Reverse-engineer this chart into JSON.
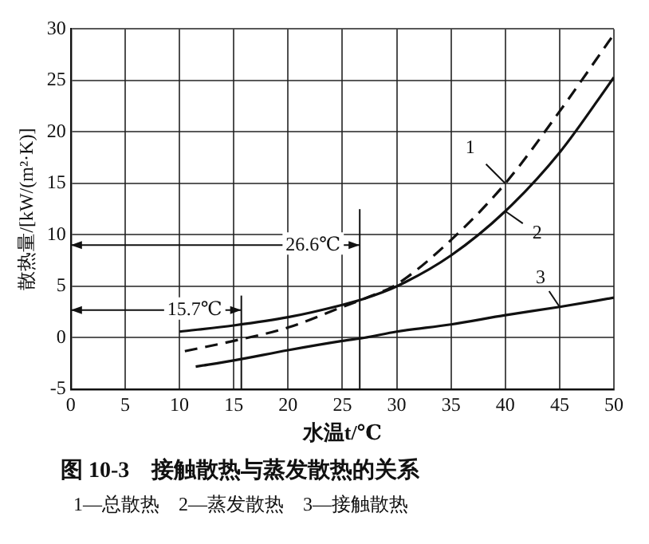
{
  "chart_data": {
    "type": "line",
    "title": "图 10-3　接触散热与蒸发散热的关系",
    "xlabel": "水温t/℃",
    "ylabel": "散热量/[kW/(m²·K)]",
    "annotations": [
      "1—总散热　2—蒸发散热　3—接触散热"
    ],
    "series": [
      {
        "name": "1",
        "color": "#111111",
        "line_style": "dashed",
        "x": [
          10.5,
          15,
          20,
          25,
          27,
          30,
          35,
          40,
          45,
          50
        ],
        "values": [
          -1.3,
          -0.3,
          1,
          3,
          3.8,
          5.2,
          9.5,
          15,
          22,
          29.5
        ]
      },
      {
        "name": "2",
        "color": "#111111",
        "line_style": "solid",
        "x": [
          10,
          15,
          20,
          25,
          27,
          30,
          35,
          40,
          45,
          50
        ],
        "values": [
          0.6,
          1.2,
          2,
          3.2,
          3.8,
          5,
          8,
          12.3,
          18,
          25.3
        ]
      },
      {
        "name": "3",
        "color": "#111111",
        "line_style": "solid",
        "x": [
          11.5,
          15,
          20,
          25,
          27,
          30,
          35,
          40,
          45,
          50
        ],
        "values": [
          -2.8,
          -2.2,
          -1.2,
          -0.3,
          0,
          0.6,
          1.3,
          2.2,
          3,
          3.9
        ]
      }
    ],
    "ref_lines": [
      {
        "axis": "x",
        "value": 26.6,
        "label": "26.6℃"
      },
      {
        "axis": "x",
        "value": 15.7,
        "label": "15.7℃"
      }
    ],
    "xlim": [
      0,
      50
    ],
    "xticks": [
      0,
      5,
      10,
      15,
      20,
      25,
      30,
      35,
      40,
      45,
      50
    ],
    "ylim": [
      -5,
      30
    ],
    "yticks": [
      -5,
      0,
      5,
      10,
      15,
      20,
      25,
      30
    ],
    "grid": true,
    "legend": false,
    "marker": "none"
  }
}
